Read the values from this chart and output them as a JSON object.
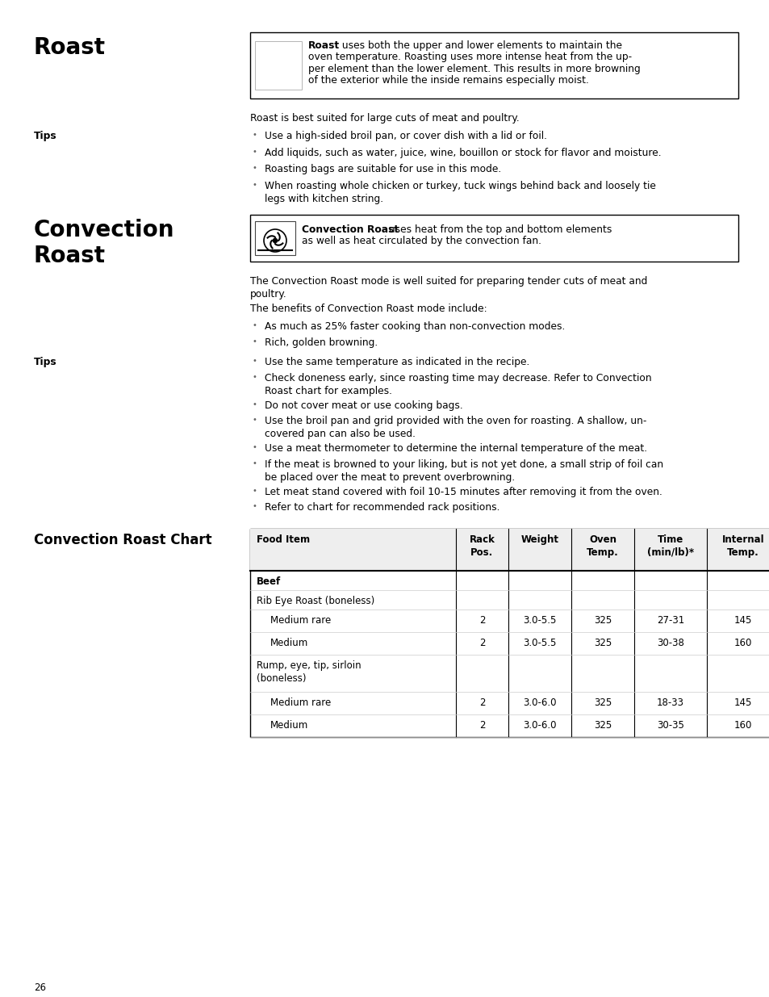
{
  "page_bg": "#ffffff",
  "page_number": "26",
  "section1_title": "Roast",
  "roast_box_lines": [
    [
      "Roast",
      true
    ],
    [
      " uses both the upper and lower elements to maintain the",
      false
    ]
  ],
  "roast_box_full": "Roast uses both the upper and lower elements to maintain the\noven temperature. Roasting uses more intense heat from the up-\nper element than the lower element. This results in more browning\nof the exterior while the inside remains especially moist.",
  "roast_intro": "Roast is best suited for large cuts of meat and poultry.",
  "tips1_label": "Tips",
  "tips1_bullets": [
    "Use a high-sided broil pan, or cover dish with a lid or foil.",
    "Add liquids, such as water, juice, wine, bouillon or stock for flavor and moisture.",
    "Roasting bags are suitable for use in this mode.",
    "When roasting whole chicken or turkey, tuck wings behind back and loosely tie\nlegs with kitchen string."
  ],
  "section2_title_line1": "Convection",
  "section2_title_line2": "Roast",
  "conv_box_text": "Convection Roast uses heat from the top and bottom elements\nas well as heat circulated by the convection fan.",
  "conv_intro1": "The Convection Roast mode is well suited for preparing tender cuts of meat and\npoultry.",
  "conv_intro2": "The benefits of Convection Roast mode include:",
  "conv_benefits": [
    "As much as 25% faster cooking than non-convection modes.",
    "Rich, golden browning."
  ],
  "tips2_label": "Tips",
  "tips2_bullets": [
    "Use the same temperature as indicated in the recipe.",
    "Check doneness early, since roasting time may decrease. Refer to Convection\nRoast chart for examples.",
    "Do not cover meat or use cooking bags.",
    "Use the broil pan and grid provided with the oven for roasting. A shallow, un-\ncovered pan can also be used.",
    "Use a meat thermometer to determine the internal temperature of the meat.",
    "If the meat is browned to your liking, but is not yet done, a small strip of foil can\nbe placed over the meat to prevent overbrowning.",
    "Let meat stand covered with foil 10-15 minutes after removing it from the oven.",
    "Refer to chart for recommended rack positions."
  ],
  "chart_section_title": "Convection Roast Chart",
  "table_headers": [
    "Food Item",
    "Rack\nPos.",
    "Weight",
    "Oven\nTemp.",
    "Time\n(min/lb)*",
    "Internal\nTemp."
  ],
  "table_data": [
    {
      "cells": [
        "Beef",
        "",
        "",
        "",
        "",
        ""
      ],
      "bold": true,
      "indent": false
    },
    {
      "cells": [
        "Rib Eye Roast (boneless)",
        "",
        "",
        "",
        "",
        ""
      ],
      "bold": false,
      "indent": false
    },
    {
      "cells": [
        "Medium rare",
        "2",
        "3.0-5.5",
        "325",
        "27-31",
        "145"
      ],
      "bold": false,
      "indent": true
    },
    {
      "cells": [
        "Medium",
        "2",
        "3.0-5.5",
        "325",
        "30-38",
        "160"
      ],
      "bold": false,
      "indent": true
    },
    {
      "cells": [
        "Rump, eye, tip, sirloin\n(boneless)",
        "",
        "",
        "",
        "",
        ""
      ],
      "bold": false,
      "indent": false
    },
    {
      "cells": [
        "Medium rare",
        "2",
        "3.0-6.0",
        "325",
        "18-33",
        "145"
      ],
      "bold": false,
      "indent": true
    },
    {
      "cells": [
        "Medium",
        "2",
        "3.0-6.0",
        "325",
        "30-35",
        "160"
      ],
      "bold": false,
      "indent": true
    }
  ]
}
